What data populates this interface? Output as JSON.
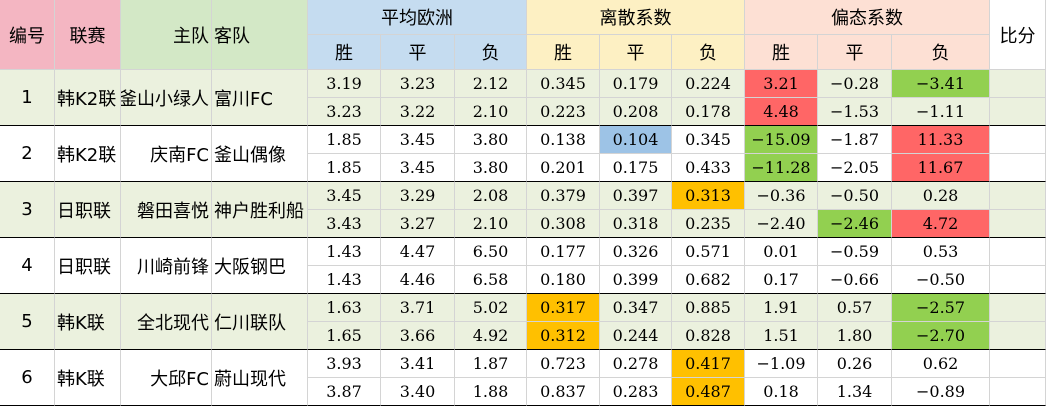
{
  "headers": {
    "id": "编号",
    "league": "联赛",
    "home": "主队",
    "away": "客队",
    "avg_euro": "平均欧洲",
    "dispersion": "离散系数",
    "skew": "偏态系数",
    "score": "比分",
    "win": "胜",
    "draw": "平",
    "lose": "负"
  },
  "colors": {
    "pink_header": "#f4b6c2",
    "green_header": "#d3e8c6",
    "blue_header": "#c5dcf0",
    "yellow_header": "#fdf0c3",
    "salmon_header": "#fde0d4",
    "group_bg": "#ebf1de",
    "hl_red": "#ff6666",
    "hl_green": "#92d050",
    "hl_blue": "#9dc3e6",
    "hl_orange": "#ffc000"
  },
  "matches": [
    {
      "id": "1",
      "league": "韩K2联",
      "home": "釜山小绿人",
      "away": "富川FC",
      "rows": [
        {
          "avg": [
            "3.19",
            "3.23",
            "2.12"
          ],
          "disp": [
            "0.345",
            "0.179",
            "0.224"
          ],
          "skew": [
            "3.21",
            "-0.28",
            "-3.41"
          ],
          "score": ""
        },
        {
          "avg": [
            "3.23",
            "3.22",
            "2.10"
          ],
          "disp": [
            "0.223",
            "0.208",
            "0.178"
          ],
          "skew": [
            "4.48",
            "-1.53",
            "-1.11"
          ],
          "score": ""
        }
      ]
    },
    {
      "id": "2",
      "league": "韩K2联",
      "home": "庆南FC",
      "away": "釜山偶像",
      "rows": [
        {
          "avg": [
            "1.85",
            "3.45",
            "3.80"
          ],
          "disp": [
            "0.138",
            "0.104",
            "0.345"
          ],
          "skew": [
            "-15.09",
            "-1.87",
            "11.33"
          ],
          "score": ""
        },
        {
          "avg": [
            "1.85",
            "3.45",
            "3.80"
          ],
          "disp": [
            "0.201",
            "0.175",
            "0.433"
          ],
          "skew": [
            "-11.28",
            "-2.05",
            "11.67"
          ],
          "score": ""
        }
      ]
    },
    {
      "id": "3",
      "league": "日职联",
      "home": "磐田喜悦",
      "away": "神户胜利船",
      "rows": [
        {
          "avg": [
            "3.45",
            "3.29",
            "2.08"
          ],
          "disp": [
            "0.379",
            "0.397",
            "0.313"
          ],
          "skew": [
            "-0.36",
            "-0.50",
            "0.28"
          ],
          "score": ""
        },
        {
          "avg": [
            "3.43",
            "3.27",
            "2.10"
          ],
          "disp": [
            "0.308",
            "0.318",
            "0.235"
          ],
          "skew": [
            "-2.40",
            "-2.46",
            "4.72"
          ],
          "score": ""
        }
      ]
    },
    {
      "id": "4",
      "league": "日职联",
      "home": "川崎前锋",
      "away": "大阪钢巴",
      "rows": [
        {
          "avg": [
            "1.43",
            "4.47",
            "6.50"
          ],
          "disp": [
            "0.177",
            "0.326",
            "0.571"
          ],
          "skew": [
            "0.01",
            "-0.59",
            "0.53"
          ],
          "score": ""
        },
        {
          "avg": [
            "1.43",
            "4.46",
            "6.58"
          ],
          "disp": [
            "0.180",
            "0.399",
            "0.682"
          ],
          "skew": [
            "0.17",
            "-0.66",
            "-0.50"
          ],
          "score": ""
        }
      ]
    },
    {
      "id": "5",
      "league": "韩K联",
      "home": "全北现代",
      "away": "仁川联队",
      "rows": [
        {
          "avg": [
            "1.63",
            "3.71",
            "5.02"
          ],
          "disp": [
            "0.317",
            "0.347",
            "0.885"
          ],
          "skew": [
            "1.91",
            "0.57",
            "-2.57"
          ],
          "score": ""
        },
        {
          "avg": [
            "1.65",
            "3.66",
            "4.92"
          ],
          "disp": [
            "0.312",
            "0.244",
            "0.828"
          ],
          "skew": [
            "1.51",
            "1.80",
            "-2.70"
          ],
          "score": ""
        }
      ]
    },
    {
      "id": "6",
      "league": "韩K联",
      "home": "大邱FC",
      "away": "蔚山现代",
      "rows": [
        {
          "avg": [
            "3.93",
            "3.41",
            "1.87"
          ],
          "disp": [
            "0.723",
            "0.278",
            "0.417"
          ],
          "skew": [
            "-1.09",
            "0.26",
            "0.62"
          ],
          "score": ""
        },
        {
          "avg": [
            "3.87",
            "3.40",
            "1.88"
          ],
          "disp": [
            "0.837",
            "0.283",
            "0.487"
          ],
          "skew": [
            "0.18",
            "1.34",
            "-0.89"
          ],
          "score": ""
        }
      ]
    }
  ],
  "highlights": {
    "m0r0d1": "",
    "m0r0s0": "hl_red",
    "m0r0s2": "hl_green",
    "m0r1s0": "hl_red",
    "m1r0d1": "hl_blue",
    "m1r0s0": "hl_green",
    "m1r0s2": "hl_red",
    "m1r1s0": "hl_green",
    "m1r1s2": "hl_red",
    "m2r0d2": "hl_orange",
    "m2r1s1": "hl_green",
    "m2r1s2": "hl_red",
    "m4r0d0": "hl_orange",
    "m4r0s2": "hl_green",
    "m4r1d0": "hl_orange",
    "m4r1s2": "hl_green",
    "m5r0d2": "hl_orange",
    "m5r1d2": "hl_orange"
  }
}
